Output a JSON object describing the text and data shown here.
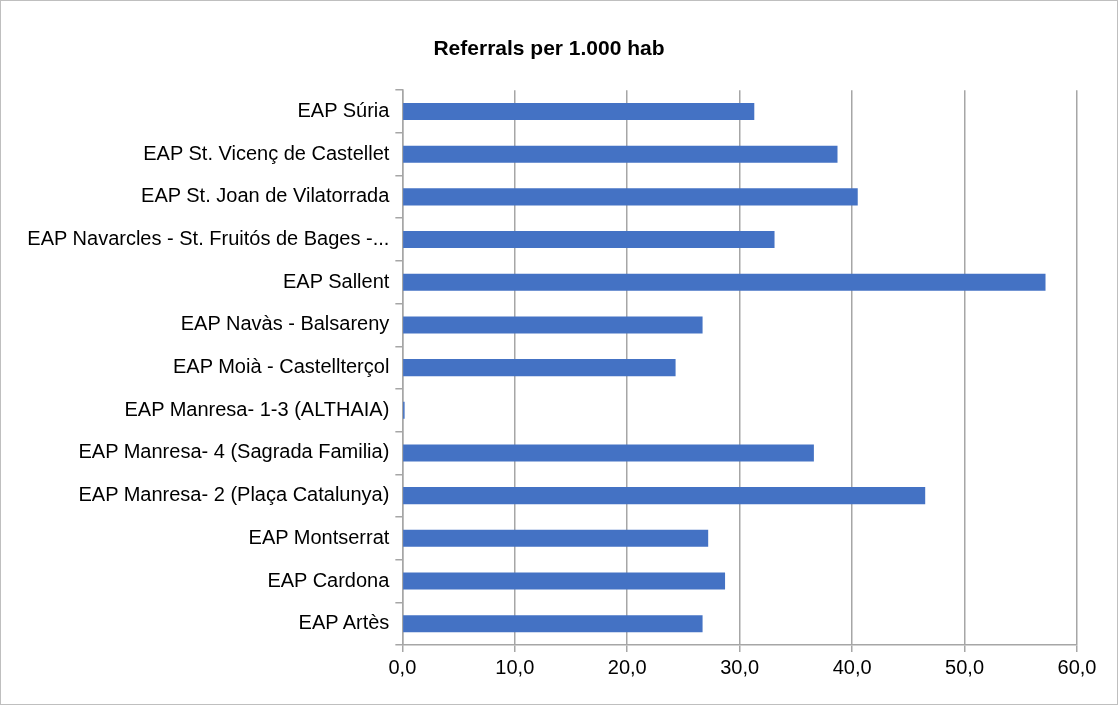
{
  "chart_data": {
    "type": "bar",
    "orientation": "horizontal",
    "title": "Referrals per 1.000 hab",
    "categories": [
      "EAP Súria",
      "EAP St. Vicenç de Castellet",
      "EAP St. Joan de Vilatorrada",
      "EAP Navarcles - St. Fruitós de Bages -...",
      "EAP Sallent",
      "EAP Navàs - Balsareny",
      "EAP Moià - Castellterçol",
      "EAP Manresa- 1-3 (ALTHAIA)",
      "EAP Manresa- 4 (Sagrada Familia)",
      "EAP Manresa- 2 (Plaça Catalunya)",
      "EAP Montserrat",
      "EAP Cardona",
      "EAP Artès"
    ],
    "values": [
      31.3,
      38.7,
      40.5,
      33.1,
      57.2,
      26.7,
      24.3,
      0.2,
      36.6,
      46.5,
      27.2,
      28.7,
      26.7
    ],
    "color": "#4472c4",
    "xlim": [
      0,
      60
    ],
    "xticks": [
      {
        "value": 0,
        "label": "0,0"
      },
      {
        "value": 10,
        "label": "10,0"
      },
      {
        "value": 20,
        "label": "20,0"
      },
      {
        "value": 30,
        "label": "30,0"
      },
      {
        "value": 40,
        "label": "40,0"
      },
      {
        "value": 50,
        "label": "50,0"
      },
      {
        "value": 60,
        "label": "60,0"
      }
    ],
    "grid": "x",
    "legend": false
  }
}
